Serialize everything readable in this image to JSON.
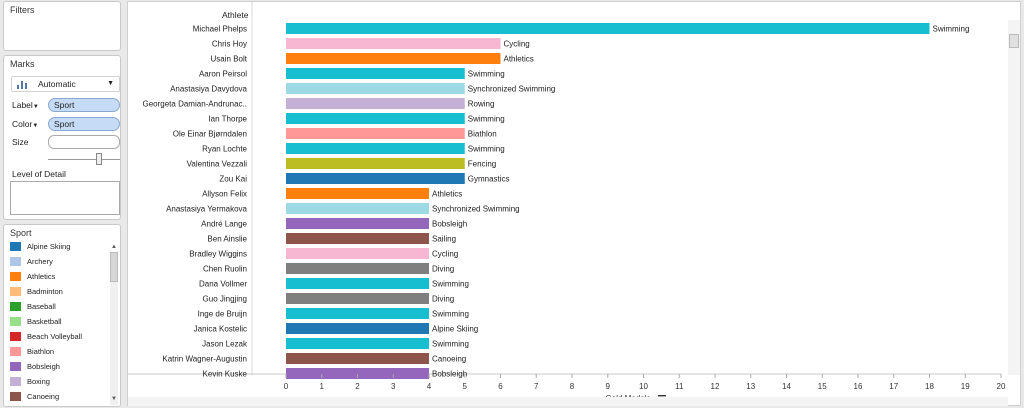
{
  "filters": {
    "title": "Filters"
  },
  "marks": {
    "title": "Marks",
    "mark_type": "Automatic",
    "label_label": "Label",
    "label_pill": "Sport",
    "color_label": "Color",
    "color_pill": "Sport",
    "size_label": "Size",
    "lod_label": "Level of Detail"
  },
  "legend": {
    "title": "Sport",
    "items": [
      {
        "label": "Alpine Skiing",
        "color": "#1f77b4"
      },
      {
        "label": "Archery",
        "color": "#aec7e8"
      },
      {
        "label": "Athletics",
        "color": "#ff7f0e"
      },
      {
        "label": "Badminton",
        "color": "#ffbb78"
      },
      {
        "label": "Baseball",
        "color": "#2ca02c"
      },
      {
        "label": "Basketball",
        "color": "#98df8a"
      },
      {
        "label": "Beach Volleyball",
        "color": "#d62728"
      },
      {
        "label": "Biathlon",
        "color": "#ff9896"
      },
      {
        "label": "Bobsleigh",
        "color": "#9467bd"
      },
      {
        "label": "Boxing",
        "color": "#c5b0d5"
      },
      {
        "label": "Canoeing",
        "color": "#8c564b"
      }
    ]
  },
  "view": {
    "row_header": "Athlete"
  },
  "colors": {
    "Swimming": "#17becf",
    "Cycling": "#f7b6d2",
    "Athletics": "#ff7f0e",
    "Synchronized Swimming": "#9edae5",
    "Rowing": "#c5b0d5",
    "Biathlon": "#ff9896",
    "Fencing": "#bcbd22",
    "Gymnastics": "#1f77b4",
    "Bobsleigh": "#9467bd",
    "Sailing": "#8c564b",
    "Diving": "#7f7f7f",
    "Alpine Skiing": "#1f77b4",
    "Canoeing": "#8c564b"
  },
  "chart_data": {
    "type": "bar",
    "orientation": "horizontal",
    "xlabel": "Gold Medals",
    "ylabel": "Athlete",
    "xlim": [
      0,
      20
    ],
    "xticks": [
      "0",
      "1",
      "2",
      "3",
      "4",
      "5",
      "6",
      "7",
      "8",
      "9",
      "10",
      "11",
      "12",
      "13",
      "14",
      "15",
      "16",
      "17",
      "18",
      "19",
      "20"
    ],
    "categories": [
      "Michael Phelps",
      "Chris Hoy",
      "Usain Bolt",
      "Aaron Peirsol",
      "Anastasiya Davydova",
      "Georgeta Damian-Andrunac..",
      "Ian Thorpe",
      "Ole Einar Bjørndalen",
      "Ryan Lochte",
      "Valentina Vezzali",
      "Zou Kai",
      "Allyson Felix",
      "Anastasiya Yermakova",
      "André Lange",
      "Ben Ainslie",
      "Bradley Wiggins",
      "Chen Ruolin",
      "Dana Vollmer",
      "Guo Jingjing",
      "Inge de Bruijn",
      "Janica Kostelic",
      "Jason Lezak",
      "Katrin Wagner-Augustin",
      "Kevin Kuske"
    ],
    "values": [
      18,
      6,
      6,
      5,
      5,
      5,
      5,
      5,
      5,
      5,
      5,
      4,
      4,
      4,
      4,
      4,
      4,
      4,
      4,
      4,
      4,
      4,
      4,
      4
    ],
    "labels": [
      "Swimming",
      "Cycling",
      "Athletics",
      "Swimming",
      "Synchronized Swimming",
      "Rowing",
      "Swimming",
      "Biathlon",
      "Swimming",
      "Fencing",
      "Gymnastics",
      "Athletics",
      "Synchronized Swimming",
      "Bobsleigh",
      "Sailing",
      "Cycling",
      "Diving",
      "Swimming",
      "Diving",
      "Swimming",
      "Alpine Skiing",
      "Swimming",
      "Canoeing",
      "Bobsleigh"
    ]
  }
}
